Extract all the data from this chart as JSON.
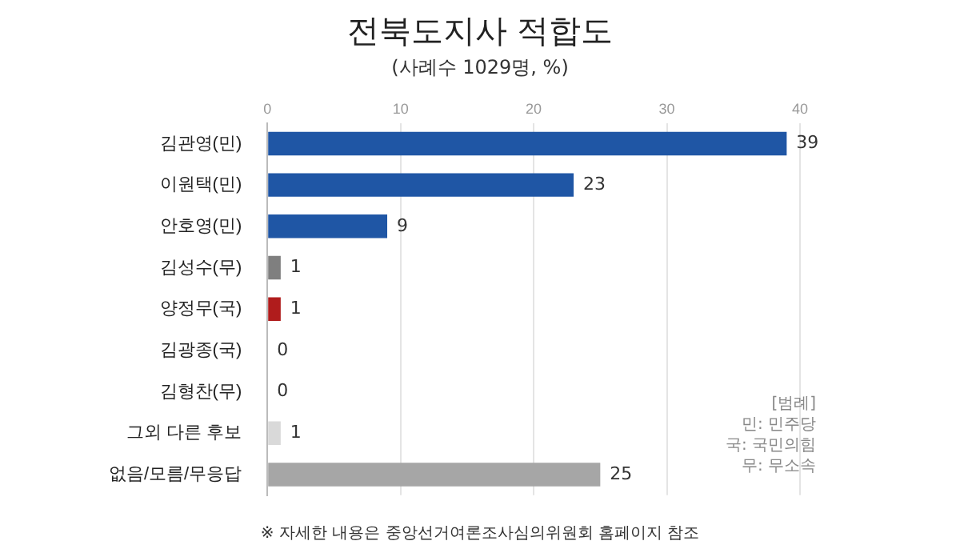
{
  "chart_data": {
    "type": "bar",
    "orientation": "horizontal",
    "title": "전북도지사 적합도",
    "subtitle": "(사례수 1029명, %)",
    "categories": [
      "김관영(민)",
      "이원택(민)",
      "안호영(민)",
      "김성수(무)",
      "양정무(국)",
      "김광종(국)",
      "김형찬(무)",
      "그외 다른 후보",
      "없음/모름/무응답"
    ],
    "values": [
      39,
      23,
      9,
      1,
      1,
      0,
      0,
      1,
      25
    ],
    "colors": [
      "#1f56a5",
      "#1f56a5",
      "#1f56a5",
      "#7f7f7f",
      "#b01c1c",
      "#e8b4b4",
      "#d0d0d0",
      "#d9d9d9",
      "#a6a6a6"
    ],
    "xlim": [
      0,
      40
    ],
    "xticks": [
      0,
      10,
      20,
      30,
      40
    ],
    "grid": "x",
    "data_labels": true,
    "legend": false,
    "annotations": [
      "[범례]",
      "민: 민주당",
      "국: 국민의힘",
      "무: 무소속",
      "※ 자세한 내용은 중앙선거여론조사심의위원회 홈페이지 참조"
    ]
  }
}
